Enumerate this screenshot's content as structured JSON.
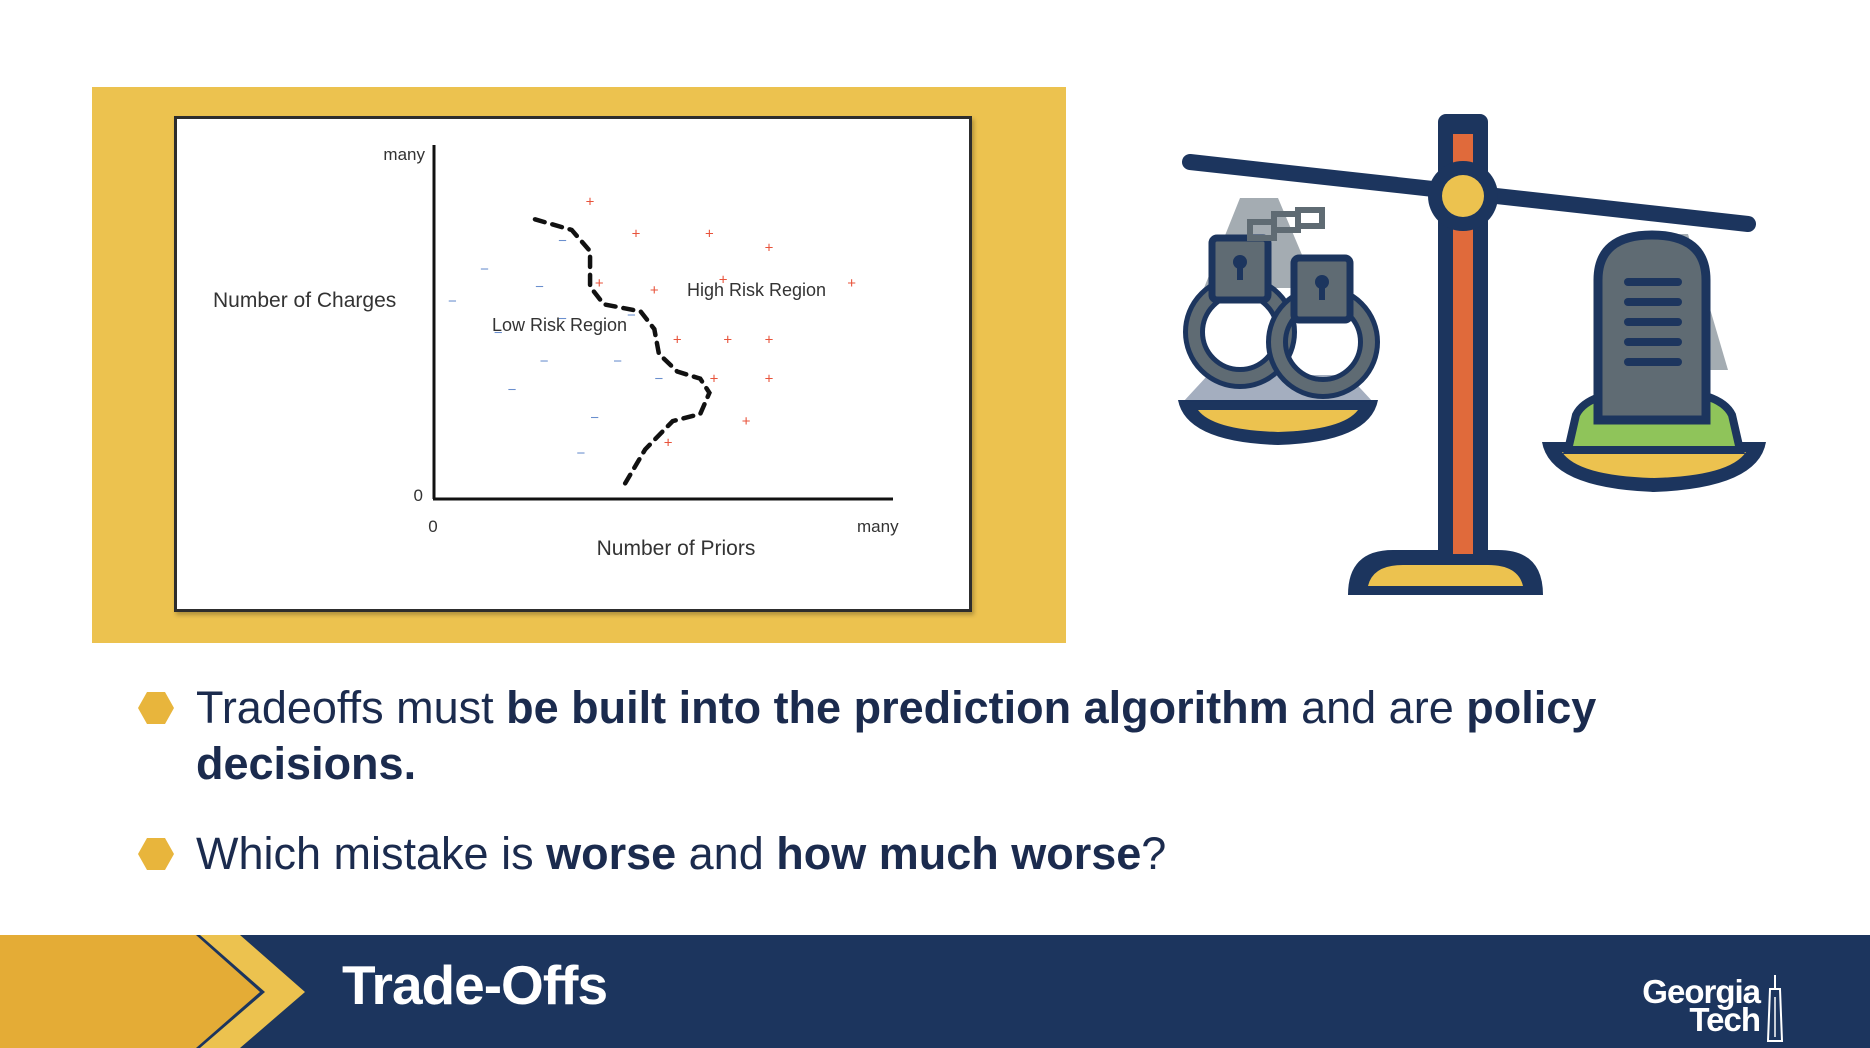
{
  "chart_data": {
    "type": "scatter",
    "xlabel": "Number of Priors",
    "ylabel": "Number of Charges",
    "x_ticks": [
      "0",
      "many"
    ],
    "y_ticks": [
      "0",
      "many"
    ],
    "series": [
      {
        "name": "+",
        "marker": "+",
        "color": "#e8533b",
        "points": [
          [
            0.34,
            0.84
          ],
          [
            0.44,
            0.75
          ],
          [
            0.6,
            0.75
          ],
          [
            0.73,
            0.71
          ],
          [
            0.63,
            0.62
          ],
          [
            0.91,
            0.61
          ],
          [
            0.36,
            0.61
          ],
          [
            0.48,
            0.59
          ],
          [
            0.53,
            0.45
          ],
          [
            0.64,
            0.45
          ],
          [
            0.73,
            0.45
          ],
          [
            0.61,
            0.34
          ],
          [
            0.73,
            0.34
          ],
          [
            0.68,
            0.22
          ],
          [
            0.51,
            0.16
          ]
        ]
      },
      {
        "name": "-",
        "marker": "−",
        "color": "#6a8fce",
        "points": [
          [
            0.28,
            0.73
          ],
          [
            0.11,
            0.65
          ],
          [
            0.23,
            0.6
          ],
          [
            0.04,
            0.56
          ],
          [
            0.28,
            0.51
          ],
          [
            0.43,
            0.52
          ],
          [
            0.14,
            0.47
          ],
          [
            0.24,
            0.39
          ],
          [
            0.4,
            0.39
          ],
          [
            0.49,
            0.34
          ],
          [
            0.35,
            0.23
          ],
          [
            0.17,
            0.31
          ],
          [
            0.32,
            0.13
          ]
        ]
      }
    ],
    "boundary": [
      [
        0.22,
        0.79
      ],
      [
        0.3,
        0.76
      ],
      [
        0.34,
        0.7
      ],
      [
        0.34,
        0.6
      ],
      [
        0.37,
        0.55
      ],
      [
        0.45,
        0.53
      ],
      [
        0.48,
        0.48
      ],
      [
        0.49,
        0.41
      ],
      [
        0.53,
        0.36
      ],
      [
        0.58,
        0.34
      ],
      [
        0.6,
        0.3
      ],
      [
        0.58,
        0.24
      ],
      [
        0.52,
        0.22
      ],
      [
        0.46,
        0.14
      ],
      [
        0.41,
        0.03
      ]
    ],
    "annotations": [
      "High Risk Region",
      "Low Risk Region"
    ]
  },
  "bullets": [
    {
      "parts": [
        {
          "text": "Tradeoffs must ",
          "bold": false
        },
        {
          "text": "be built into the prediction algorithm",
          "bold": true
        },
        {
          "text": " and are ",
          "bold": false
        },
        {
          "text": "policy decisions.",
          "bold": true
        }
      ]
    },
    {
      "parts": [
        {
          "text": "Which mistake is ",
          "bold": false
        },
        {
          "text": "worse",
          "bold": true
        },
        {
          "text": " and ",
          "bold": false
        },
        {
          "text": "how much worse",
          "bold": true
        },
        {
          "text": "?",
          "bold": false
        }
      ]
    }
  ],
  "footer": {
    "title": "Trade-Offs"
  },
  "logo": {
    "line1": "Georgia",
    "line2": "Tech"
  },
  "icons": {
    "bullet": "hexagon-bullet-icon",
    "illustration": "scale-of-justice-icon",
    "left_pan": "handcuffs-icon",
    "right_pan": "tombstone-icon"
  },
  "colors": {
    "navy": "#1c355e",
    "gold": "#ecc24f",
    "accent_orange": "#e06a3b",
    "green": "#8fc45a",
    "gray": "#5f6b73"
  }
}
